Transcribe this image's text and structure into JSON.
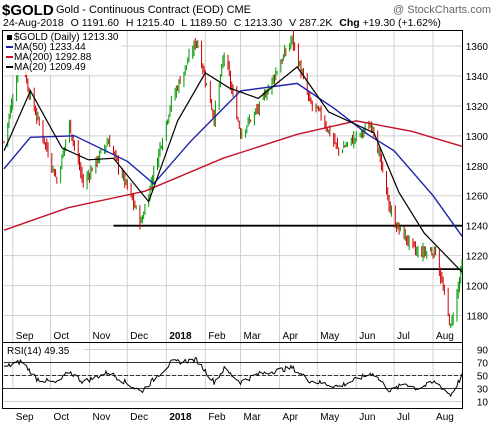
{
  "header": {
    "symbol": "$GOLD",
    "name": "Gold - Continuous Contract (EOD)",
    "exchange": "CME",
    "watermark": "@ StockCharts.com",
    "date": "24-Aug-2018",
    "open_label": "O",
    "open": "1191.60",
    "high_label": "H",
    "high": "1215.40",
    "low_label": "L",
    "low": "1189.50",
    "close_label": "C",
    "close": "1213.30",
    "volume_label": "V",
    "volume": "287.2K",
    "change_label": "Chg",
    "change": "+19.30 (+1.62%)"
  },
  "legend": {
    "price": "$GOLD (Daily) 1213.30",
    "ma50": "MA(50) 1233.44",
    "ma200": "MA(200) 1292.88",
    "ma20": "MA(20) 1209.49"
  },
  "rsi_legend": "RSI(14) 49.35",
  "colors": {
    "bull": "#009900",
    "bear": "#cc0000",
    "ma50": "#1c24a8",
    "ma200": "#c4122a",
    "ma20": "#000000",
    "rsi": "#000000",
    "rsi_band": "#000000",
    "grid": "#cfcfcf",
    "gridline_dark": "#9a9a9a"
  },
  "chart_data": [
    {
      "type": "candlestick",
      "title": "$GOLD Gold - Continuous Contract (EOD) CME",
      "x_ticks": [
        "Sep",
        "Oct",
        "Nov",
        "Dec",
        "2018",
        "Feb",
        "Mar",
        "Apr",
        "May",
        "Jun",
        "Jul",
        "Aug"
      ],
      "y_ticks": [
        1180,
        1200,
        1220,
        1240,
        1260,
        1280,
        1300,
        1320,
        1340,
        1360
      ],
      "ylim": [
        1163,
        1370
      ],
      "grid": true,
      "x_period": [
        "2017-08-25",
        "2018-08-24"
      ],
      "key_points": [
        {
          "date": "2017-08-25",
          "price": 1296
        },
        {
          "date": "2017-09-08",
          "price": 1356
        },
        {
          "date": "2017-09-13",
          "price": 1332
        },
        {
          "date": "2017-10-06",
          "price": 1270
        },
        {
          "date": "2017-10-16",
          "price": 1308
        },
        {
          "date": "2017-10-27",
          "price": 1268
        },
        {
          "date": "2017-11-16",
          "price": 1297
        },
        {
          "date": "2017-12-12",
          "price": 1242
        },
        {
          "date": "2018-01-05",
          "price": 1323
        },
        {
          "date": "2018-01-25",
          "price": 1364
        },
        {
          "date": "2018-02-08",
          "price": 1312
        },
        {
          "date": "2018-02-16",
          "price": 1355
        },
        {
          "date": "2018-03-01",
          "price": 1302
        },
        {
          "date": "2018-03-15",
          "price": 1318
        },
        {
          "date": "2018-04-11",
          "price": 1365
        },
        {
          "date": "2018-04-25",
          "price": 1322
        },
        {
          "date": "2018-05-03",
          "price": 1315
        },
        {
          "date": "2018-05-18",
          "price": 1290
        },
        {
          "date": "2018-06-14",
          "price": 1308
        },
        {
          "date": "2018-06-28",
          "price": 1250
        },
        {
          "date": "2018-07-03",
          "price": 1240
        },
        {
          "date": "2018-07-19",
          "price": 1222
        },
        {
          "date": "2018-08-03",
          "price": 1223
        },
        {
          "date": "2018-08-15",
          "price": 1172
        },
        {
          "date": "2018-08-24",
          "price": 1213
        }
      ],
      "ma50": [
        {
          "date": "2017-08-25",
          "value": 1278
        },
        {
          "date": "2017-09-15",
          "value": 1299
        },
        {
          "date": "2017-10-20",
          "value": 1300
        },
        {
          "date": "2017-12-01",
          "value": 1283
        },
        {
          "date": "2017-12-22",
          "value": 1268
        },
        {
          "date": "2018-01-20",
          "value": 1296
        },
        {
          "date": "2018-03-01",
          "value": 1330
        },
        {
          "date": "2018-04-15",
          "value": 1335
        },
        {
          "date": "2018-05-15",
          "value": 1318
        },
        {
          "date": "2018-06-10",
          "value": 1301
        },
        {
          "date": "2018-07-01",
          "value": 1290
        },
        {
          "date": "2018-08-01",
          "value": 1260
        },
        {
          "date": "2018-08-24",
          "value": 1233
        }
      ],
      "ma200": [
        {
          "date": "2017-08-25",
          "value": 1237
        },
        {
          "date": "2017-10-15",
          "value": 1252
        },
        {
          "date": "2017-12-15",
          "value": 1263
        },
        {
          "date": "2018-02-15",
          "value": 1285
        },
        {
          "date": "2018-04-15",
          "value": 1301
        },
        {
          "date": "2018-06-01",
          "value": 1310
        },
        {
          "date": "2018-07-15",
          "value": 1303
        },
        {
          "date": "2018-08-24",
          "value": 1293
        }
      ],
      "ma20": [
        {
          "date": "2017-08-25",
          "value": 1290
        },
        {
          "date": "2017-09-15",
          "value": 1330
        },
        {
          "date": "2017-10-10",
          "value": 1292
        },
        {
          "date": "2017-10-31",
          "value": 1284
        },
        {
          "date": "2017-11-20",
          "value": 1285
        },
        {
          "date": "2017-12-18",
          "value": 1256
        },
        {
          "date": "2018-01-10",
          "value": 1310
        },
        {
          "date": "2018-02-01",
          "value": 1342
        },
        {
          "date": "2018-02-20",
          "value": 1332
        },
        {
          "date": "2018-03-15",
          "value": 1325
        },
        {
          "date": "2018-04-15",
          "value": 1346
        },
        {
          "date": "2018-05-10",
          "value": 1316
        },
        {
          "date": "2018-06-15",
          "value": 1302
        },
        {
          "date": "2018-07-05",
          "value": 1262
        },
        {
          "date": "2018-07-25",
          "value": 1235
        },
        {
          "date": "2018-08-24",
          "value": 1209
        }
      ],
      "horizontal_lines": [
        {
          "price": 1240,
          "from": "2017-11-20",
          "to": "2018-08-24"
        },
        {
          "price": 1211,
          "from": "2018-07-05",
          "to": "2018-08-24"
        }
      ]
    },
    {
      "type": "line",
      "title": "RSI(14) 49.35",
      "y_ticks": [
        10,
        30,
        50,
        70,
        90
      ],
      "ylim": [
        0,
        100
      ],
      "bands": [
        30,
        50,
        70
      ],
      "grid": true,
      "points": [
        {
          "date": "2017-08-25",
          "value": 62
        },
        {
          "date": "2017-09-08",
          "value": 72
        },
        {
          "date": "2017-09-20",
          "value": 45
        },
        {
          "date": "2017-10-06",
          "value": 38
        },
        {
          "date": "2017-10-16",
          "value": 56
        },
        {
          "date": "2017-10-27",
          "value": 40
        },
        {
          "date": "2017-11-16",
          "value": 55
        },
        {
          "date": "2017-12-12",
          "value": 25
        },
        {
          "date": "2018-01-05",
          "value": 70
        },
        {
          "date": "2018-01-25",
          "value": 74
        },
        {
          "date": "2018-02-08",
          "value": 40
        },
        {
          "date": "2018-02-16",
          "value": 60
        },
        {
          "date": "2018-03-01",
          "value": 40
        },
        {
          "date": "2018-03-15",
          "value": 52
        },
        {
          "date": "2018-04-11",
          "value": 62
        },
        {
          "date": "2018-04-25",
          "value": 42
        },
        {
          "date": "2018-05-18",
          "value": 33
        },
        {
          "date": "2018-06-14",
          "value": 54
        },
        {
          "date": "2018-06-28",
          "value": 26
        },
        {
          "date": "2018-07-10",
          "value": 38
        },
        {
          "date": "2018-07-19",
          "value": 30
        },
        {
          "date": "2018-08-03",
          "value": 40
        },
        {
          "date": "2018-08-15",
          "value": 20
        },
        {
          "date": "2018-08-24",
          "value": 49
        }
      ]
    }
  ]
}
